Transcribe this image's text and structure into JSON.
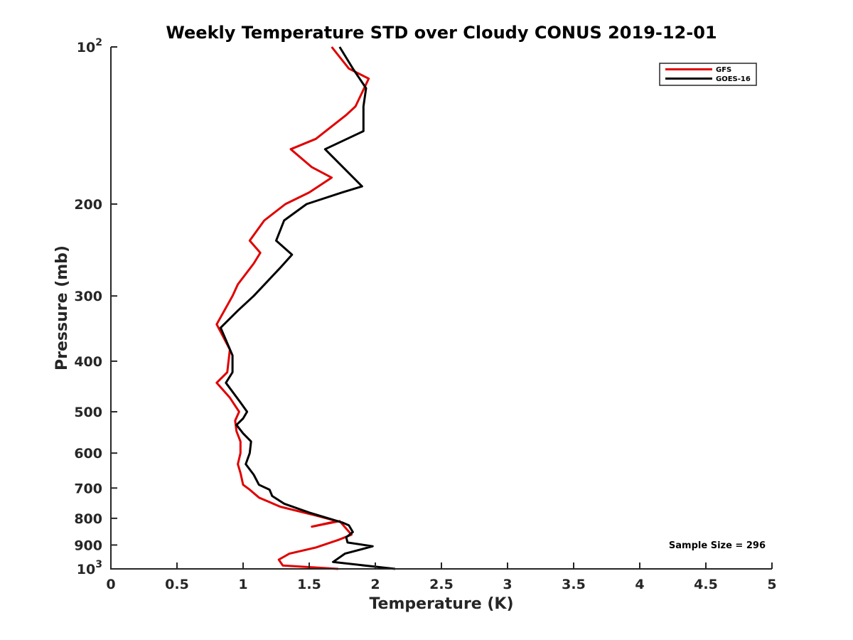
{
  "chart_data": {
    "type": "line",
    "title": "Weekly Temperature STD over Cloudy CONUS 2019-12-01",
    "xlabel": "Temperature (K)",
    "ylabel": "Pressure (mb)",
    "xlim": [
      0,
      5
    ],
    "ylim": [
      100,
      1000
    ],
    "y_scale": "log",
    "y_reversed": true,
    "grid": false,
    "legend_position": "top-right",
    "x_ticks": [
      {
        "value": 0,
        "label": "0"
      },
      {
        "value": 0.5,
        "label": "0.5"
      },
      {
        "value": 1,
        "label": "1"
      },
      {
        "value": 1.5,
        "label": "1.5"
      },
      {
        "value": 2,
        "label": "2"
      },
      {
        "value": 2.5,
        "label": "2.5"
      },
      {
        "value": 3,
        "label": "3"
      },
      {
        "value": 3.5,
        "label": "3.5"
      },
      {
        "value": 4,
        "label": "4"
      },
      {
        "value": 4.5,
        "label": "4.5"
      },
      {
        "value": 5,
        "label": "5"
      }
    ],
    "y_ticks": [
      {
        "value": 100,
        "base": "10",
        "exp": "2"
      },
      {
        "value": 200,
        "label": "200"
      },
      {
        "value": 300,
        "label": "300"
      },
      {
        "value": 400,
        "label": "400"
      },
      {
        "value": 500,
        "label": "500"
      },
      {
        "value": 600,
        "label": "600"
      },
      {
        "value": 700,
        "label": "700"
      },
      {
        "value": 800,
        "label": "800"
      },
      {
        "value": 900,
        "label": "900"
      },
      {
        "value": 1000,
        "base": "10",
        "exp": "3"
      }
    ],
    "annotation": "Sample Size = 296",
    "series": [
      {
        "name": "GFS",
        "color": "#e00000",
        "points": [
          [
            1.67,
            100
          ],
          [
            1.8,
            110
          ],
          [
            1.95,
            115
          ],
          [
            1.85,
            130
          ],
          [
            1.78,
            135
          ],
          [
            1.55,
            150
          ],
          [
            1.36,
            157
          ],
          [
            1.52,
            170
          ],
          [
            1.67,
            178
          ],
          [
            1.5,
            190
          ],
          [
            1.32,
            200
          ],
          [
            1.16,
            215
          ],
          [
            1.05,
            235
          ],
          [
            1.13,
            248
          ],
          [
            1.08,
            260
          ],
          [
            0.96,
            285
          ],
          [
            0.92,
            300
          ],
          [
            0.8,
            340
          ],
          [
            0.9,
            380
          ],
          [
            0.88,
            420
          ],
          [
            0.8,
            440
          ],
          [
            0.9,
            470
          ],
          [
            0.97,
            500
          ],
          [
            0.94,
            520
          ],
          [
            0.95,
            545
          ],
          [
            0.98,
            570
          ],
          [
            0.98,
            600
          ],
          [
            0.96,
            630
          ],
          [
            0.98,
            655
          ],
          [
            1.0,
            690
          ],
          [
            1.05,
            705
          ],
          [
            1.12,
            730
          ],
          [
            1.28,
            760
          ],
          [
            1.55,
            790
          ],
          [
            1.71,
            810
          ],
          [
            1.52,
            830
          ],
          [
            1.73,
            810
          ],
          [
            1.82,
            860
          ],
          [
            1.72,
            880
          ],
          [
            1.55,
            910
          ],
          [
            1.35,
            935
          ],
          [
            1.27,
            960
          ],
          [
            1.3,
            985
          ],
          [
            1.72,
            1000
          ]
        ]
      },
      {
        "name": "GOES-16",
        "color": "#000000",
        "points": [
          [
            1.73,
            100
          ],
          [
            1.83,
            110
          ],
          [
            1.93,
            120
          ],
          [
            1.91,
            130
          ],
          [
            1.91,
            145
          ],
          [
            1.62,
            157
          ],
          [
            1.9,
            185
          ],
          [
            1.75,
            190
          ],
          [
            1.48,
            200
          ],
          [
            1.31,
            215
          ],
          [
            1.25,
            235
          ],
          [
            1.37,
            250
          ],
          [
            1.28,
            265
          ],
          [
            1.08,
            300
          ],
          [
            0.96,
            320
          ],
          [
            0.83,
            345
          ],
          [
            0.92,
            390
          ],
          [
            0.92,
            420
          ],
          [
            0.87,
            440
          ],
          [
            0.98,
            480
          ],
          [
            1.03,
            500
          ],
          [
            1.0,
            515
          ],
          [
            0.95,
            530
          ],
          [
            1.0,
            550
          ],
          [
            1.06,
            570
          ],
          [
            1.05,
            600
          ],
          [
            1.02,
            630
          ],
          [
            1.08,
            660
          ],
          [
            1.12,
            690
          ],
          [
            1.2,
            705
          ],
          [
            1.22,
            725
          ],
          [
            1.31,
            750
          ],
          [
            1.5,
            780
          ],
          [
            1.75,
            815
          ],
          [
            1.8,
            825
          ],
          [
            1.83,
            850
          ],
          [
            1.78,
            870
          ],
          [
            1.79,
            890
          ],
          [
            1.98,
            905
          ],
          [
            1.77,
            935
          ],
          [
            1.68,
            970
          ],
          [
            2.15,
            1000
          ]
        ]
      }
    ]
  }
}
